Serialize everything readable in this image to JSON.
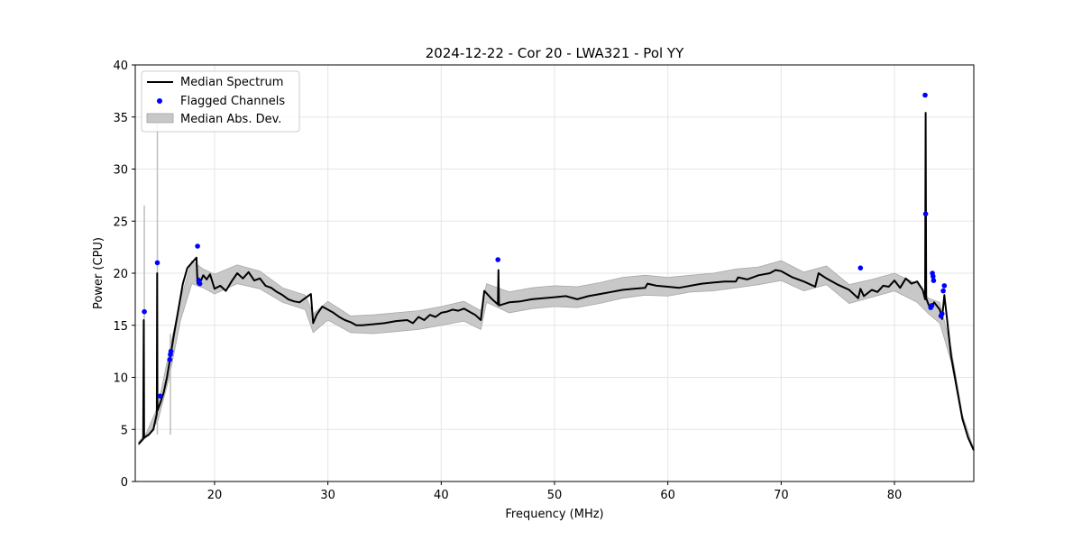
{
  "chart_data": {
    "type": "line",
    "title": "2024-12-22 - Cor 20 - LWA321 - Pol YY",
    "xlabel": "Frequency (MHz)",
    "ylabel": "Power (CPU)",
    "xlim": [
      13,
      87
    ],
    "ylim": [
      0,
      40
    ],
    "grid": true,
    "x_ticks": [
      20,
      30,
      40,
      50,
      60,
      70,
      80
    ],
    "y_ticks": [
      0,
      5,
      10,
      15,
      20,
      25,
      30,
      35,
      40
    ],
    "legend": {
      "position": "top-left",
      "entries": [
        "Median Spectrum",
        "Flagged Channels",
        "Median Abs. Dev."
      ]
    },
    "colors": {
      "median": "#000000",
      "flagged": "#0000ff",
      "mad_band": "#c8c8c8"
    },
    "series": [
      {
        "name": "Median Spectrum",
        "kind": "line",
        "x": [
          13.3,
          13.7,
          13.75,
          13.78,
          14.2,
          14.6,
          14.9,
          14.93,
          14.96,
          15.2,
          15.5,
          15.8,
          16.1,
          16.4,
          16.8,
          17.2,
          17.6,
          18.0,
          18.4,
          18.5,
          18.6,
          18.8,
          19.0,
          19.3,
          19.6,
          20.0,
          20.5,
          21.0,
          21.5,
          22.0,
          22.5,
          23.0,
          23.5,
          24.0,
          24.5,
          25.0,
          25.5,
          26.0,
          26.5,
          27.0,
          27.5,
          28.0,
          28.5,
          28.7,
          29.0,
          29.5,
          30.0,
          30.5,
          31.0,
          31.5,
          32.0,
          32.5,
          33.0,
          34.0,
          35.0,
          36.0,
          37.0,
          37.5,
          38.0,
          38.5,
          39.0,
          39.5,
          40.0,
          40.5,
          41.0,
          41.5,
          42.0,
          42.5,
          43.0,
          43.5,
          43.8,
          44.4,
          45.0,
          45.05,
          45.1,
          46.0,
          47.0,
          48.0,
          49.0,
          50.0,
          51.0,
          52.0,
          53.0,
          54.0,
          55.0,
          56.0,
          57.0,
          58.0,
          58.2,
          59.0,
          60.0,
          61.0,
          62.0,
          63.0,
          64.0,
          65.0,
          66.0,
          66.2,
          67.0,
          68.0,
          69.0,
          69.5,
          70.0,
          71.0,
          72.0,
          73.0,
          73.3,
          74.0,
          75.0,
          76.0,
          76.5,
          76.8,
          77.0,
          77.3,
          78.0,
          78.5,
          79.0,
          79.5,
          80.0,
          80.5,
          81.0,
          81.5,
          82.0,
          82.5,
          82.7,
          82.75,
          82.8,
          83.0,
          83.2,
          83.5,
          84.0,
          84.2,
          84.4,
          84.6,
          85.0,
          85.5,
          86.0,
          86.5,
          87.0
        ],
        "y": [
          3.6,
          4.1,
          15.5,
          4.2,
          4.5,
          5.0,
          6.5,
          20.0,
          6.8,
          7.5,
          8.5,
          10.0,
          12.0,
          14.0,
          16.5,
          19.0,
          20.5,
          21.0,
          21.5,
          19.0,
          19.5,
          19.3,
          19.8,
          19.4,
          19.9,
          18.5,
          18.8,
          18.3,
          19.2,
          20.0,
          19.5,
          20.1,
          19.3,
          19.5,
          18.8,
          18.6,
          18.2,
          17.9,
          17.5,
          17.3,
          17.2,
          17.6,
          18.0,
          15.2,
          16.0,
          16.8,
          16.5,
          16.2,
          15.8,
          15.5,
          15.3,
          15.0,
          15.0,
          15.1,
          15.2,
          15.4,
          15.5,
          15.2,
          15.8,
          15.5,
          16.0,
          15.8,
          16.2,
          16.3,
          16.5,
          16.4,
          16.6,
          16.3,
          16.0,
          15.5,
          18.3,
          17.6,
          17.0,
          20.3,
          16.9,
          17.2,
          17.3,
          17.5,
          17.6,
          17.7,
          17.8,
          17.5,
          17.8,
          18.0,
          18.2,
          18.4,
          18.5,
          18.6,
          19.0,
          18.8,
          18.7,
          18.6,
          18.8,
          19.0,
          19.1,
          19.2,
          19.2,
          19.6,
          19.4,
          19.8,
          20.0,
          20.3,
          20.2,
          19.6,
          19.2,
          18.7,
          20.0,
          19.5,
          18.9,
          18.4,
          17.9,
          17.6,
          18.5,
          17.8,
          18.4,
          18.2,
          18.8,
          18.7,
          19.3,
          18.6,
          19.5,
          19.0,
          19.2,
          18.4,
          17.5,
          35.4,
          17.6,
          17.0,
          16.6,
          17.2,
          16.5,
          15.6,
          17.9,
          16.0,
          12.0,
          9.0,
          6.0,
          4.2,
          3.0
        ]
      },
      {
        "name": "Median Abs. Dev.",
        "kind": "band",
        "x": [
          13.3,
          14.0,
          15.0,
          16.0,
          17.0,
          18.0,
          19.0,
          20.0,
          22.0,
          24.0,
          26.0,
          28.0,
          28.7,
          30.0,
          32.0,
          34.0,
          36.0,
          38.0,
          40.0,
          42.0,
          43.5,
          44.0,
          46.0,
          48.0,
          50.0,
          52.0,
          54.0,
          56.0,
          58.0,
          60.0,
          62.0,
          64.0,
          66.0,
          68.0,
          70.0,
          72.0,
          74.0,
          76.0,
          78.0,
          80.0,
          82.0,
          83.0,
          84.0,
          85.0,
          86.0,
          87.0
        ],
        "lower": [
          3.5,
          4.3,
          5.8,
          10.0,
          15.5,
          19.0,
          18.6,
          18.0,
          19.0,
          18.5,
          17.2,
          16.5,
          14.3,
          15.5,
          14.3,
          14.2,
          14.4,
          14.6,
          15.0,
          15.4,
          14.6,
          17.2,
          16.2,
          16.6,
          16.8,
          16.7,
          17.1,
          17.6,
          17.9,
          17.8,
          18.2,
          18.3,
          18.6,
          18.9,
          19.3,
          18.3,
          18.9,
          17.1,
          17.7,
          18.3,
          17.2,
          16.1,
          15.2,
          11.5,
          5.8,
          3.0
        ],
        "upper": [
          3.8,
          4.7,
          7.2,
          12.5,
          17.5,
          21.2,
          20.4,
          19.9,
          20.8,
          20.2,
          18.6,
          17.9,
          16.1,
          17.3,
          15.9,
          16.0,
          16.2,
          16.4,
          16.8,
          17.3,
          16.4,
          19.0,
          18.2,
          18.6,
          18.8,
          18.7,
          19.1,
          19.6,
          19.8,
          19.6,
          19.8,
          20.0,
          20.4,
          20.6,
          21.2,
          20.1,
          20.7,
          18.9,
          19.4,
          20.0,
          19.0,
          17.6,
          17.2,
          12.8,
          6.4,
          3.1
        ]
      },
      {
        "name": "Flagged Channels",
        "kind": "scatter",
        "x": [
          13.8,
          14.95,
          15.2,
          16.05,
          16.1,
          16.15,
          18.5,
          18.6,
          18.7,
          45.0,
          77.0,
          82.7,
          82.75,
          83.2,
          83.3,
          83.35,
          83.4,
          83.45,
          84.1,
          84.2,
          84.3,
          84.4
        ],
        "y": [
          16.3,
          21.0,
          8.2,
          11.7,
          12.2,
          12.5,
          22.6,
          19.3,
          19.0,
          21.3,
          20.5,
          37.1,
          25.7,
          16.7,
          16.9,
          20.0,
          19.7,
          19.3,
          15.9,
          16.1,
          18.3,
          18.8
        ]
      }
    ],
    "mad_spikes": [
      {
        "x": 13.8,
        "upper": 26.5
      },
      {
        "x": 14.95,
        "upper": 35.0
      },
      {
        "x": 16.1,
        "upper": 14.2
      }
    ]
  }
}
